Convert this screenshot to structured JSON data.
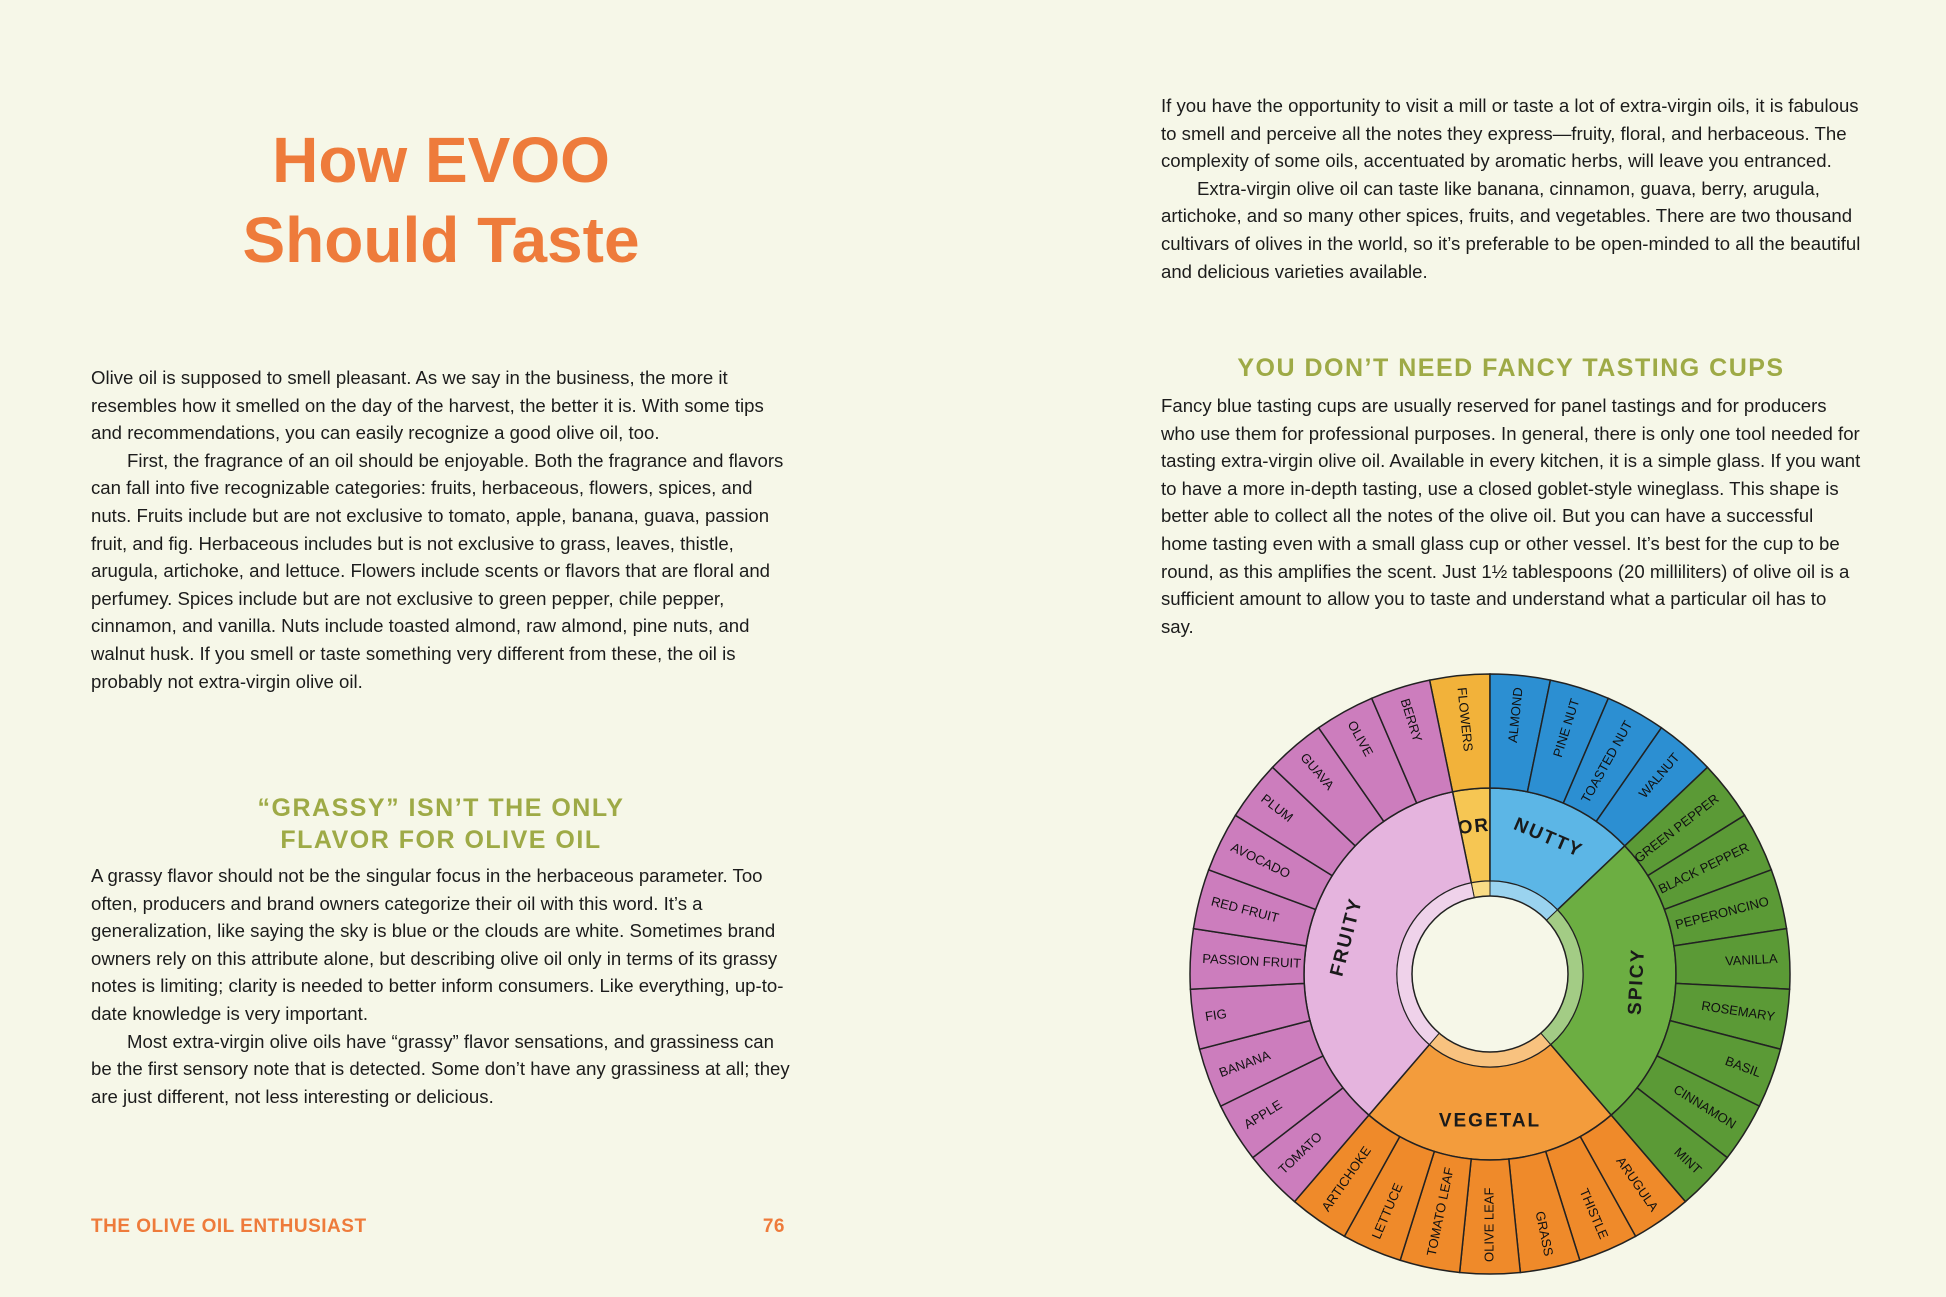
{
  "left_page": {
    "title": [
      "How EVOO",
      "Should Taste"
    ],
    "intro_paragraphs": [
      "Olive oil is supposed to smell pleasant. As we say in the business, the more it resembles how it smelled on the day of the harvest, the better it is. With some tips and recommendations, you can easily recognize a good olive oil, too.",
      "First, the fragrance of an oil should be enjoyable. Both the fragrance and flavors can fall into five recognizable categories: fruits, herbaceous, flowers, spices, and nuts. Fruits include but are not exclusive to tomato, apple, banana, guava, passion fruit, and fig. Herbaceous includes but is not exclusive to grass, leaves, thistle, arugula, artichoke, and lettuce. Flowers include scents or flavors that are floral and perfumey. Spices include but are not exclusive to green pepper, chile pepper, cinnamon, and vanilla. Nuts include toasted almond, raw almond, pine nuts, and walnut husk. If you smell or taste something very different from these, the oil is probably not extra-virgin olive oil."
    ],
    "section_heading": [
      "“GRASSY” ISN’T THE ONLY",
      "FLAVOR FOR OLIVE OIL"
    ],
    "section_paragraphs": [
      "A grassy flavor should not be the singular focus in the herbaceous parameter. Too often, producers and brand owners categorize their oil with this word. It’s a generalization, like saying the sky is blue or the clouds are white. Sometimes brand owners rely on this attribute alone, but describing olive oil only in terms of its grassy notes is limiting; clarity is needed to better inform consumers. Like everything, up-to-date knowledge is very important.",
      "Most extra-virgin olive oils have “grassy” flavor sensations, and grassiness can be the first sensory note that is detected. Some don’t have any grassiness at all; they are just different, not less interesting or delicious."
    ]
  },
  "right_page": {
    "intro_paragraphs": [
      "If you have the opportunity to visit a mill or taste a lot of extra-virgin oils, it is fabulous to smell and perceive all the notes they express—fruity, floral, and herbaceous. The complexity of some oils, accentuated by aromatic herbs, will leave you entranced.",
      "Extra-virgin olive oil can taste like banana, cinnamon, guava, berry, arugula, artichoke, and so many other spices, fruits, and vegetables. There are two thousand cultivars of olives in the world, so it’s preferable to be open-minded to all the beautiful and delicious varieties available."
    ],
    "section_heading": "YOU DON’T NEED FANCY TASTING CUPS",
    "section_paragraph": "Fancy blue tasting cups are usually reserved for panel tastings and for producers who use them for professional purposes. In general, there is only one tool needed for tasting extra-virgin olive oil. Available in every kitchen, it is a simple glass. If you want to have a more in-depth tasting, use a closed goblet-style wineglass. This shape is better able to collect all the notes of the olive oil. But you can have a successful home tasting even with a small glass cup or other vessel. It’s best for the cup to be round, as this amplifies the scent. Just 1½ tablespoons (20 milliliters) of olive oil is a sufficient amount to allow you to taste and understand what a particular oil has to say.",
    "flavor_wheel": {
      "categories": [
        {
          "name": "FLORAL",
          "items": [
            "FLOWERS"
          ]
        },
        {
          "name": "NUTTY",
          "items": [
            "ALMOND",
            "PINE NUT",
            "TOASTED NUT",
            "WALNUT"
          ]
        },
        {
          "name": "SPICY",
          "items": [
            "GREEN PEPPER",
            "BLACK PEPPER",
            "PEPERONCINO",
            "VANILLA",
            "ROSEMARY",
            "BASIL",
            "CINNAMON",
            "MINT"
          ]
        },
        {
          "name": "VEGETAL",
          "items": [
            "ARUGULA",
            "THISTLE",
            "GRASS",
            "OLIVE LEAF",
            "TOMATO LEAF",
            "LETTUCE",
            "ARTICHOKE"
          ]
        },
        {
          "name": "FRUITY",
          "items": [
            "TOMATO",
            "APPLE",
            "BANANA",
            "FIG",
            "PASSION FRUIT",
            "RED FRUIT",
            "AVOCADO",
            "PLUM",
            "GUAVA",
            "OLIVE",
            "BERRY"
          ]
        }
      ]
    }
  },
  "footer": {
    "book_title": "THE OLIVE OIL ENTHUSIAST",
    "page_number": "76"
  }
}
